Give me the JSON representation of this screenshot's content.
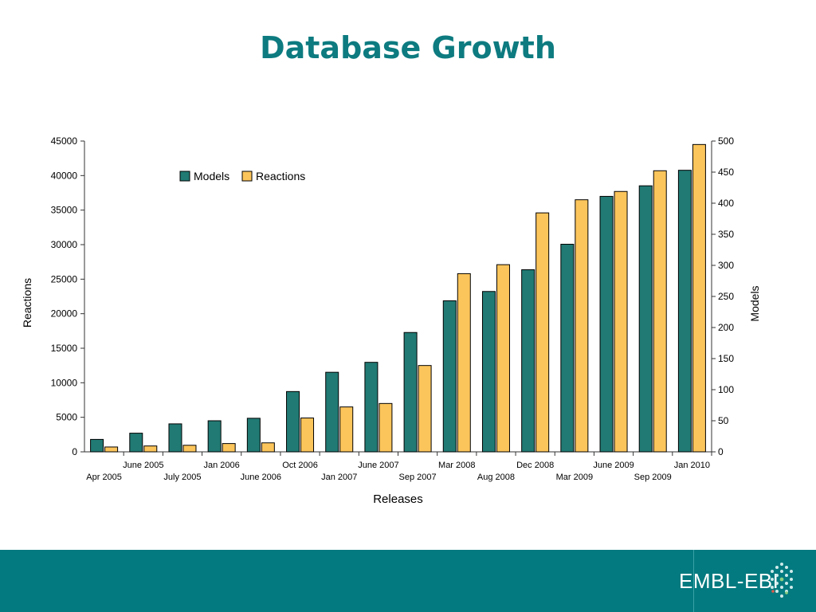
{
  "slide": {
    "title": "Database Growth"
  },
  "footer": {
    "logo_text": "EMBL-EBI",
    "background": "#037a7f"
  },
  "colors": {
    "models": "#217a74",
    "reactions": "#fcc55b",
    "title": "#0d7b80"
  },
  "chart_data": {
    "type": "bar",
    "categories": [
      "Apr 2005",
      "June 2005",
      "July 2005",
      "Jan 2006",
      "June 2006",
      "Oct 2006",
      "Jan 2007",
      "June 2007",
      "Sep 2007",
      "Mar 2008",
      "Aug 2008",
      "Dec 2008",
      "Mar 2009",
      "June 2009",
      "Sep 2009",
      "Jan 2010"
    ],
    "series": [
      {
        "name": "Models",
        "axis": "right",
        "values": [
          20,
          30,
          45,
          50,
          54,
          97,
          128,
          144,
          192,
          243,
          258,
          293,
          334,
          411,
          428,
          453
        ]
      },
      {
        "name": "Reactions",
        "axis": "left",
        "values": [
          700,
          850,
          950,
          1200,
          1300,
          4900,
          6500,
          7000,
          12500,
          25800,
          27100,
          34600,
          36500,
          37700,
          40700,
          44500
        ]
      }
    ],
    "xlabel": "Releases",
    "ylabel": "Reactions",
    "y2label": "Models",
    "ylim": [
      0,
      45000
    ],
    "y2lim": [
      0,
      500
    ],
    "yticks": [
      0,
      5000,
      10000,
      15000,
      20000,
      25000,
      30000,
      35000,
      40000,
      45000
    ],
    "y2ticks": [
      0,
      50,
      100,
      150,
      200,
      250,
      300,
      350,
      400,
      450,
      500
    ],
    "legend": "top-left",
    "grid": false
  }
}
